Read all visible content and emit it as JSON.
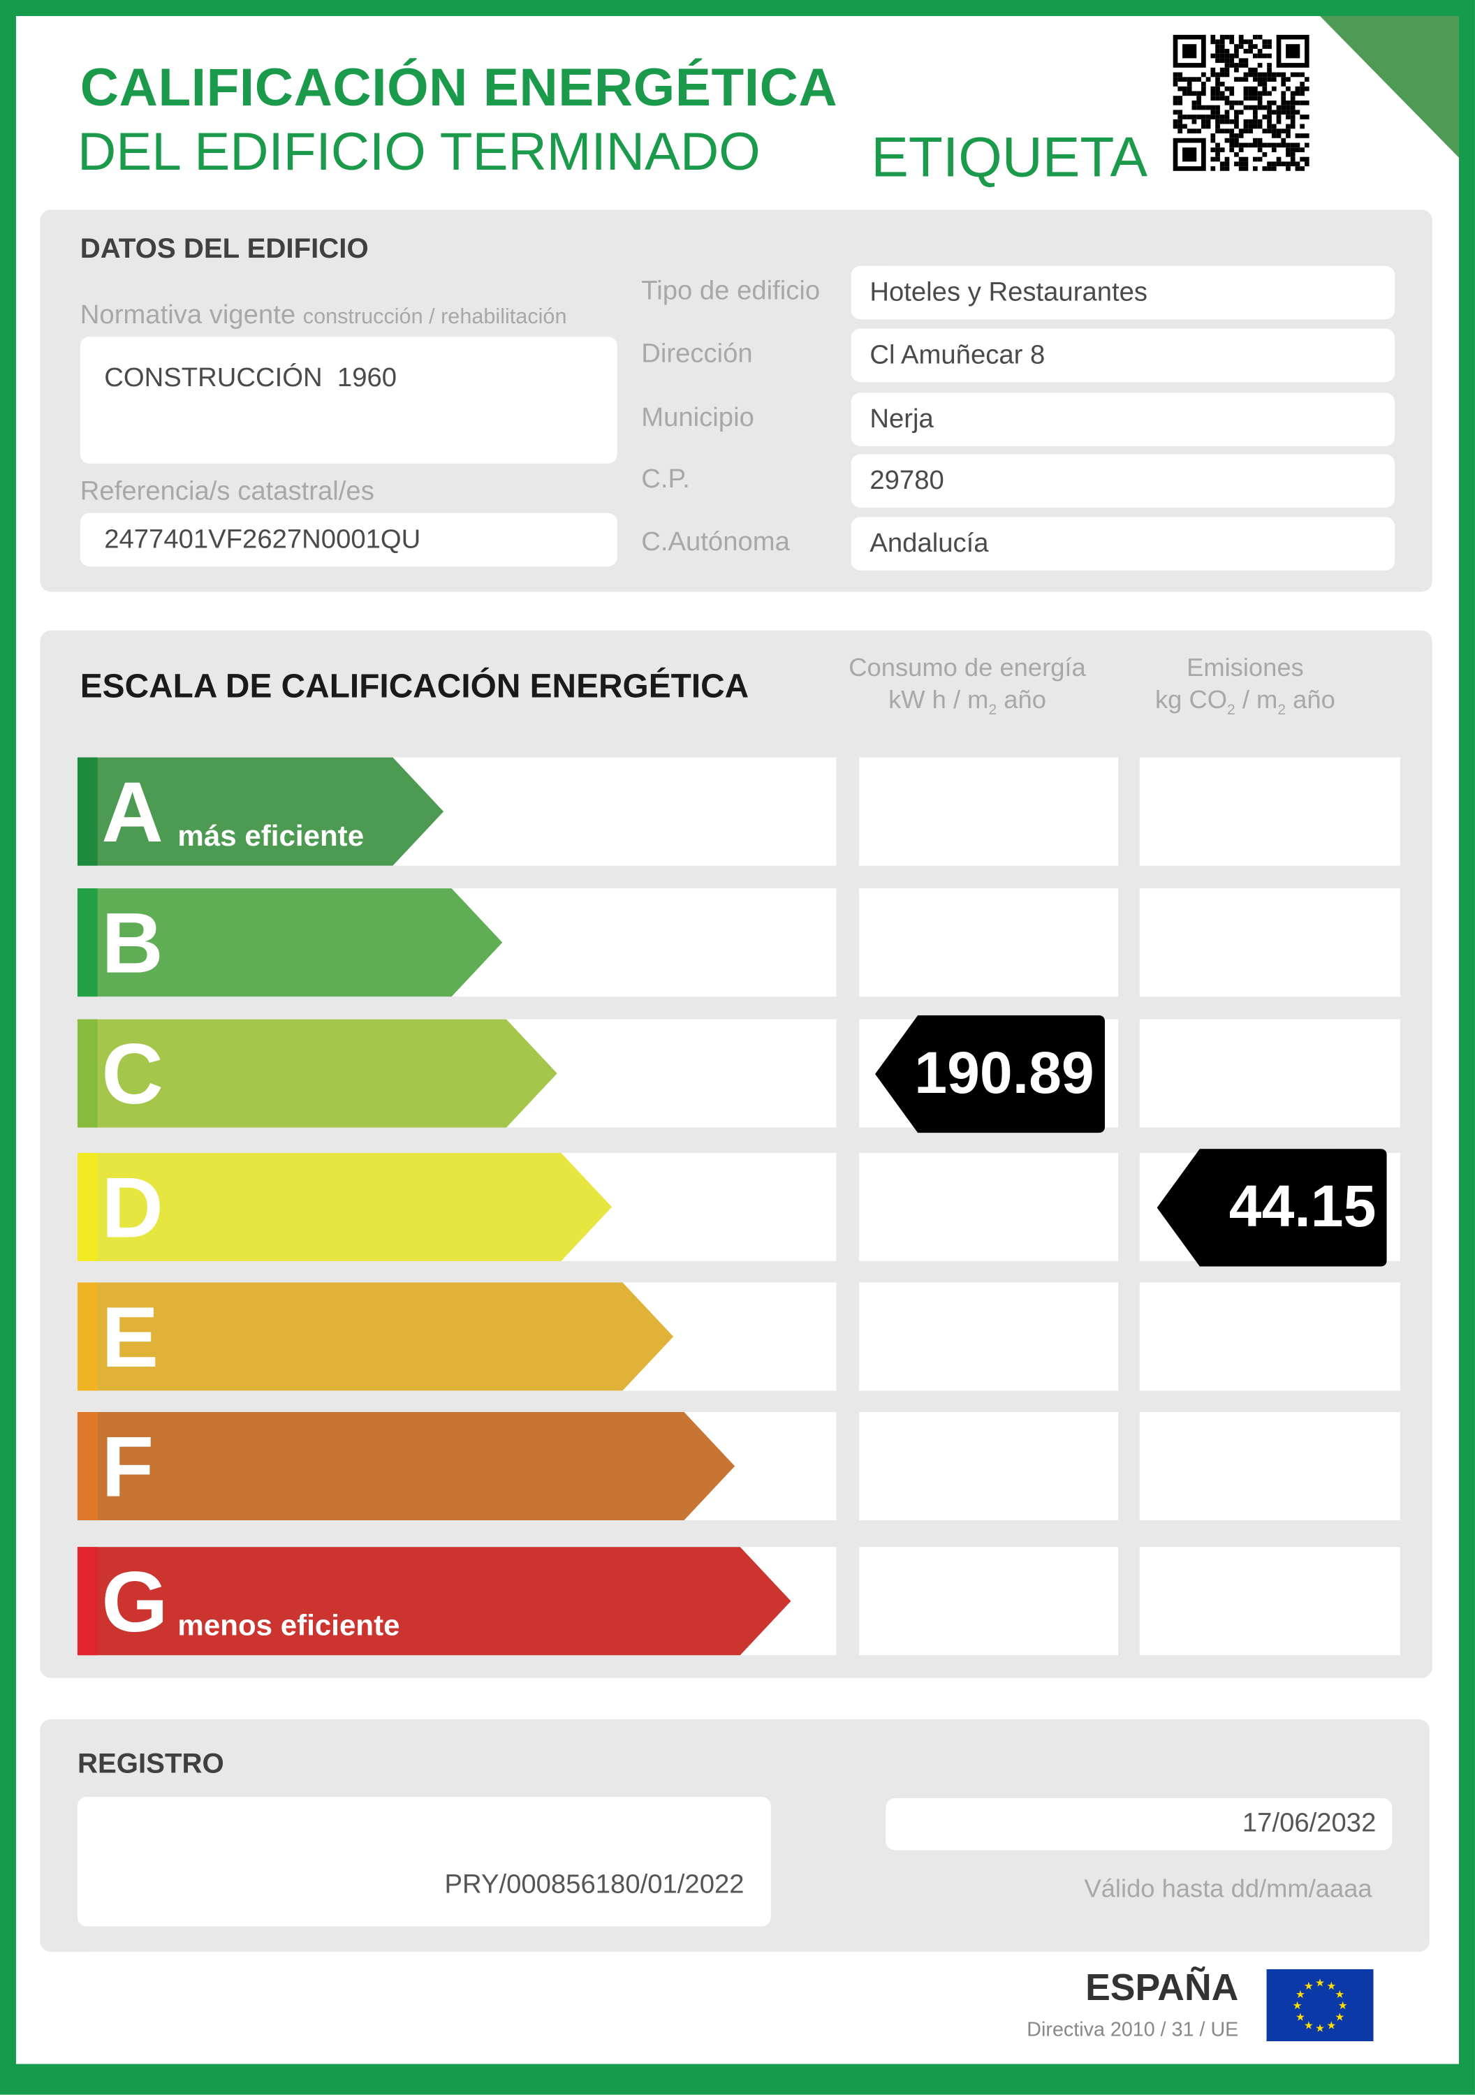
{
  "header": {
    "title_line1": "CALIFICACIÓN ENERGÉTICA",
    "title_line2": "DEL EDIFICIO TERMINADO",
    "label": "ETIQUETA",
    "qr_icon": "qr-code-icon"
  },
  "building": {
    "heading": "DATOS DEL EDIFICIO",
    "normativa_label": "Normativa vigente",
    "normativa_sublabel": "construcción / rehabilitación",
    "normativa_value": "CONSTRUCCIÓN  1960",
    "catastral_label": "Referencia/s catastral/es",
    "catastral_value": "2477401VF2627N0001QU",
    "fields": [
      {
        "label": "Tipo de edificio",
        "value": "Hoteles y Restaurantes"
      },
      {
        "label": "Dirección",
        "value": "Cl Amuñecar 8"
      },
      {
        "label": "Municipio",
        "value": "Nerja"
      },
      {
        "label": "C.P.",
        "value": "29780"
      },
      {
        "label": "C.Autónoma",
        "value": "Andalucía"
      }
    ]
  },
  "scale": {
    "heading": "ESCALA DE CALIFICACIÓN ENERGÉTICA",
    "col1_title": "Consumo de energía",
    "col1_unit_a": "kW h / m",
    "col1_unit_sub": "2",
    "col1_unit_b": " año",
    "col2_title": "Emisiones",
    "col2_unit_a": "kg CO",
    "col2_unit_sub1": "2",
    "col2_unit_b": " / m",
    "col2_unit_sub2": "2",
    "col2_unit_c": " año",
    "classes": [
      {
        "letter": "A",
        "sub": "más eficiente",
        "color": "#4d9a52",
        "stripe": "#1e8a3e"
      },
      {
        "letter": "B",
        "sub": "",
        "color": "#5fae55",
        "stripe": "#23a245"
      },
      {
        "letter": "C",
        "sub": "",
        "color": "#a4c74b",
        "stripe": "#86bb3c"
      },
      {
        "letter": "D",
        "sub": "",
        "color": "#e7e641",
        "stripe": "#f2ea22"
      },
      {
        "letter": "E",
        "sub": "",
        "color": "#e0b338",
        "stripe": "#f0b322"
      },
      {
        "letter": "F",
        "sub": "",
        "color": "#c87433",
        "stripe": "#e0782a"
      },
      {
        "letter": "G",
        "sub": "menos eficiente",
        "color": "#cc3430",
        "stripe": "#e0262a"
      }
    ],
    "energy": {
      "value": "190.89",
      "class": "C"
    },
    "emissions": {
      "value": "44.15",
      "class": "D"
    }
  },
  "registro": {
    "heading": "REGISTRO",
    "number": "PRY/000856180/01/2022",
    "valid_date": "17/06/2032",
    "valid_label": "Válido hasta dd/mm/aaaa"
  },
  "footer": {
    "country": "ESPAÑA",
    "directive": "Directiva 2010 / 31 / UE",
    "flag_icon": "eu-flag-icon"
  },
  "colors": {
    "brand_green": "#169a4c",
    "panel": "#e8e8e8",
    "badge": "#000000"
  }
}
